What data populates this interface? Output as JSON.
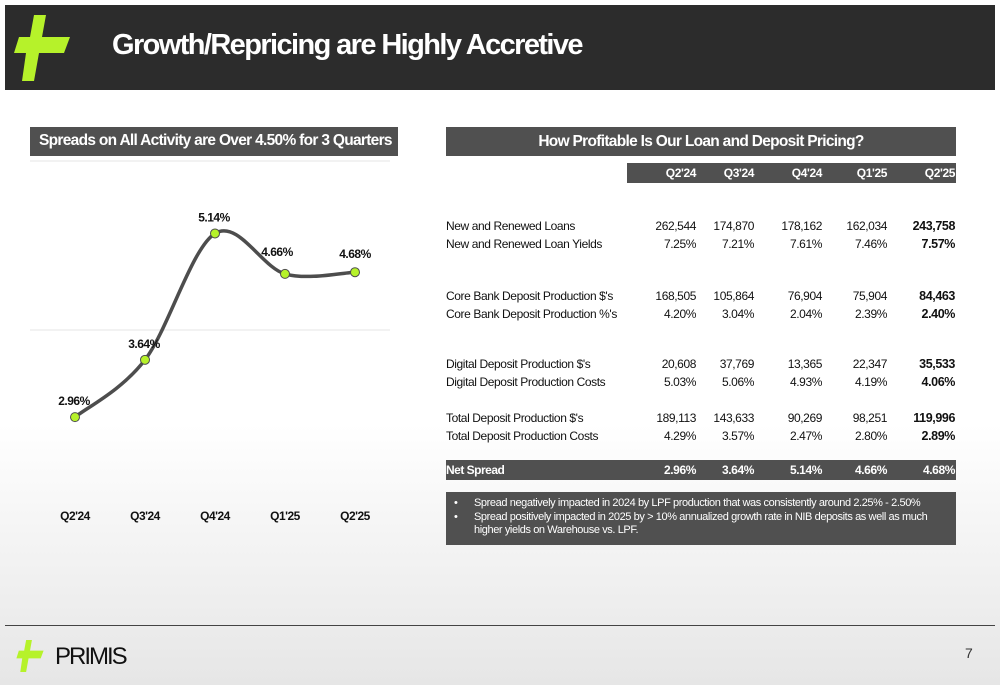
{
  "header": {
    "title": "Growth/Repricing are Highly Accretive",
    "logo_color": "#b6f22a"
  },
  "left_panel": {
    "title": "Spreads on All Activity are Over 4.50% for 3 Quarters"
  },
  "chart_data": {
    "type": "line",
    "categories": [
      "Q2'24",
      "Q3'24",
      "Q4'24",
      "Q1'25",
      "Q2'25"
    ],
    "values": [
      2.96,
      3.64,
      5.14,
      4.66,
      4.68
    ],
    "labels": [
      "2.96%",
      "3.64%",
      "5.14%",
      "4.66%",
      "4.68%"
    ],
    "title": "",
    "xlabel": "",
    "ylabel": "",
    "ylim": [
      2.0,
      6.0
    ],
    "line_color": "#4d4d4d",
    "marker_color": "#b6f22a",
    "grid": true
  },
  "right_panel": {
    "title": "How Profitable Is Our Loan and Deposit Pricing?",
    "columns": [
      "Q2'24",
      "Q3'24",
      "Q4'24",
      "Q1'25",
      "Q2'25"
    ],
    "rows": [
      {
        "label": "New and Renewed Loans",
        "values": [
          "262,544",
          "174,870",
          "178,162",
          "162,034",
          "243,758"
        ]
      },
      {
        "label": "New and Renewed Loan Yields",
        "values": [
          "7.25%",
          "7.21%",
          "7.61%",
          "7.46%",
          "7.57%"
        ]
      },
      {
        "label": "Core Bank Deposit Production $'s",
        "values": [
          "168,505",
          "105,864",
          "76,904",
          "75,904",
          "84,463"
        ]
      },
      {
        "label": "Core Bank Deposit Production %'s",
        "values": [
          "4.20%",
          "3.04%",
          "2.04%",
          "2.39%",
          "2.40%"
        ]
      },
      {
        "label": "Digital Deposit Production $'s",
        "values": [
          "20,608",
          "37,769",
          "13,365",
          "22,347",
          "35,533"
        ]
      },
      {
        "label": "Digital Deposit Production Costs",
        "values": [
          "5.03%",
          "5.06%",
          "4.93%",
          "4.19%",
          "4.06%"
        ]
      },
      {
        "label": "Total Deposit Production $'s",
        "values": [
          "189,113",
          "143,633",
          "90,269",
          "98,251",
          "119,996"
        ]
      },
      {
        "label": "Total Deposit Production Costs",
        "values": [
          "4.29%",
          "3.57%",
          "2.47%",
          "2.80%",
          "2.89%"
        ]
      }
    ],
    "net_spread": {
      "label": "Net Spread",
      "values": [
        "2.96%",
        "3.64%",
        "5.14%",
        "4.66%",
        "4.68%"
      ]
    },
    "notes": [
      "Spread negatively impacted in 2024 by LPF production that was consistently around 2.25% - 2.50%",
      "Spread positively impacted in 2025 by > 10% annualized growth rate in NIB deposits as well as much higher yields on Warehouse vs. LPF."
    ]
  },
  "footer": {
    "brand": "PRIMIS",
    "page_number": "7"
  }
}
